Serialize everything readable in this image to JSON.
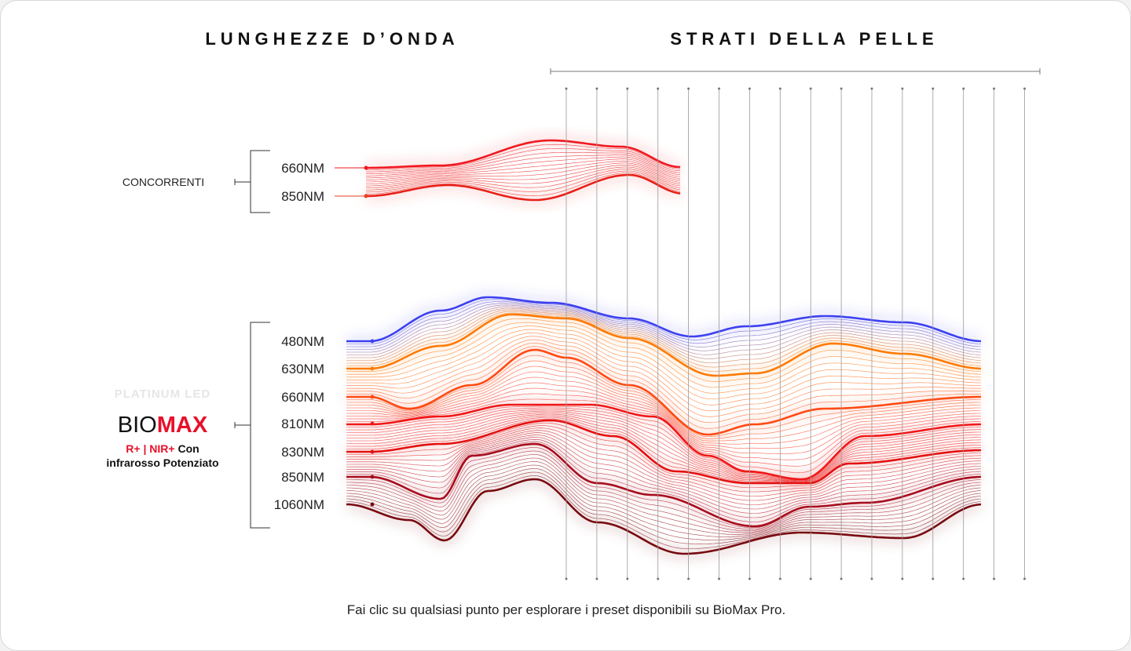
{
  "header": {
    "left_title": "LUNGHEZZE D’ONDA",
    "right_title": "STRATI DELLA PELLE"
  },
  "competitors": {
    "label": "CONCORRENTI",
    "wavelengths": [
      "660NM",
      "850NM"
    ]
  },
  "biomax": {
    "logo": "PLATINUM LED",
    "brand_light": "BIO",
    "brand_bold": "MAX",
    "spec_highlight": "R+ | NIR+",
    "spec_text": "Con infrarosso Potenziato",
    "wavelengths": [
      "480NM",
      "630NM",
      "660NM",
      "810NM",
      "830NM",
      "850NM",
      "1060NM"
    ]
  },
  "footer": {
    "caption": "Fai clic su qualsiasi punto per esplorare i preset disponibili su BioMax Pro."
  }
}
